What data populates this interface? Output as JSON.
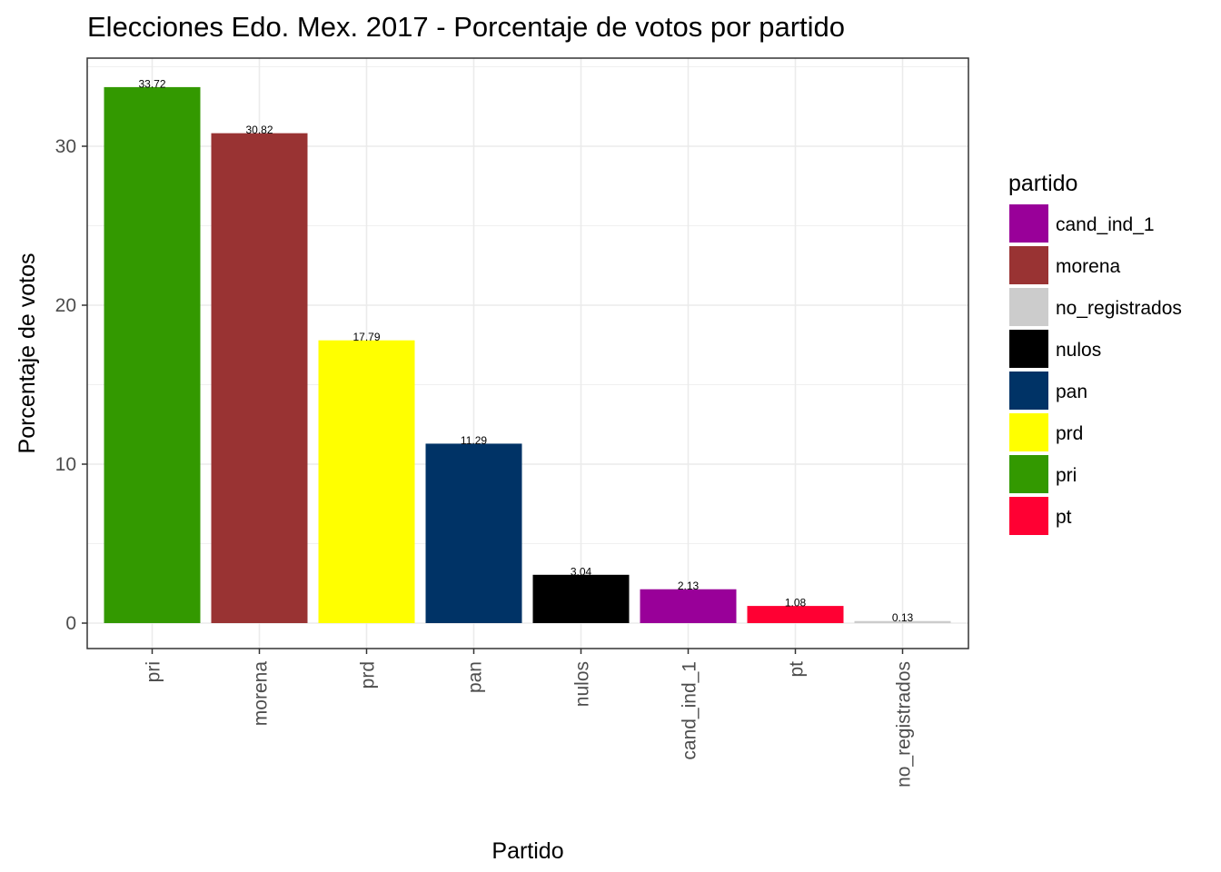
{
  "chart_data": {
    "type": "bar",
    "title": "Elecciones Edo. Mex. 2017 - Porcentaje de votos por partido",
    "xlabel": "Partido",
    "ylabel": "Porcentaje de votos",
    "categories": [
      "pri",
      "morena",
      "prd",
      "pan",
      "nulos",
      "cand_ind_1",
      "pt",
      "no_registrados"
    ],
    "values": [
      33.72,
      30.82,
      17.79,
      11.29,
      3.04,
      2.13,
      1.08,
      0.13
    ],
    "value_labels": [
      "33.72",
      "30.82",
      "17.79",
      "11.29",
      "3.04",
      "2.13",
      "1.08",
      "0.13"
    ],
    "bar_colors": [
      "#339900",
      "#993333",
      "#FFFF00",
      "#003366",
      "#000000",
      "#990099",
      "#FF0033",
      "#CCCCCC"
    ],
    "ylim": [
      0,
      35.4
    ],
    "y_ticks": [
      0,
      10,
      20,
      30
    ],
    "y_tick_labels": [
      "0",
      "10",
      "20",
      "30"
    ],
    "grid": true,
    "legend": {
      "title": "partido",
      "placement": "right",
      "entries": [
        {
          "label": "cand_ind_1",
          "color": "#990099"
        },
        {
          "label": "morena",
          "color": "#993333"
        },
        {
          "label": "no_registrados",
          "color": "#CCCCCC"
        },
        {
          "label": "nulos",
          "color": "#000000"
        },
        {
          "label": "pan",
          "color": "#003366"
        },
        {
          "label": "prd",
          "color": "#FFFF00"
        },
        {
          "label": "pri",
          "color": "#339900"
        },
        {
          "label": "pt",
          "color": "#FF0033"
        }
      ]
    }
  }
}
